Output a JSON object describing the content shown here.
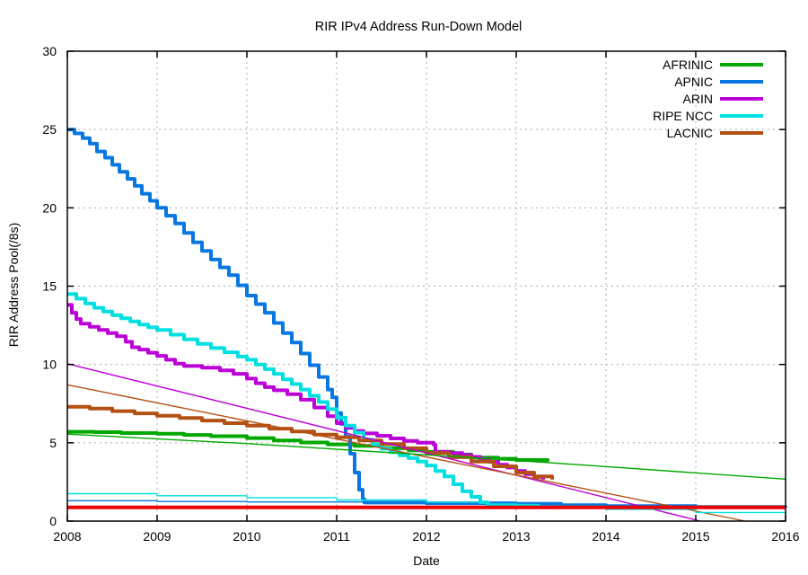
{
  "chart_data": {
    "type": "line",
    "title": "RIR IPv4 Address Run-Down Model",
    "xlabel": "Date",
    "ylabel": "RIR Address Pool(/8s)",
    "xlim": [
      2008,
      2016
    ],
    "ylim": [
      0,
      30
    ],
    "x_ticks": [
      2008,
      2009,
      2010,
      2011,
      2012,
      2013,
      2014,
      2015,
      2016
    ],
    "x_tick_labels": [
      "2008",
      "2009",
      "2010",
      "2011",
      "2012",
      "2013",
      "2014",
      "2015",
      "2016"
    ],
    "y_ticks": [
      0,
      5,
      10,
      15,
      20,
      25,
      30
    ],
    "y_tick_labels": [
      "0",
      "5",
      "10",
      "15",
      "20",
      "25",
      "30"
    ],
    "grid": true,
    "grid_color": "#ababab",
    "legend_position": "top-right-inside",
    "legend": [
      {
        "label": "AFRINIC",
        "color": "#00a800"
      },
      {
        "label": "APNIC",
        "color": "#0878e0"
      },
      {
        "label": "ARIN",
        "color": "#bc00d8"
      },
      {
        "label": "RIPE NCC",
        "color": "#00e0e0"
      },
      {
        "label": "LACNIC",
        "color": "#b35013"
      }
    ],
    "series": [
      {
        "name": "AFRINIC",
        "color": "#00a800",
        "width": 4,
        "interp": "step",
        "in_legend": true,
        "points": [
          [
            2008,
            5.7
          ],
          [
            2008.3,
            5.68
          ],
          [
            2008.6,
            5.62
          ],
          [
            2009,
            5.58
          ],
          [
            2009.3,
            5.5
          ],
          [
            2009.6,
            5.42
          ],
          [
            2010,
            5.3
          ],
          [
            2010.3,
            5.15
          ],
          [
            2010.6,
            5.02
          ],
          [
            2010.9,
            4.9
          ],
          [
            2011.2,
            4.8
          ],
          [
            2011.5,
            4.65
          ],
          [
            2011.8,
            4.52
          ],
          [
            2012,
            4.42
          ],
          [
            2012.3,
            4.25
          ],
          [
            2012.5,
            4.05
          ],
          [
            2012.8,
            3.98
          ],
          [
            2013,
            3.9
          ],
          [
            2013.35,
            3.8
          ]
        ]
      },
      {
        "name": "APNIC",
        "color": "#0878e0",
        "width": 4,
        "interp": "step",
        "in_legend": true,
        "points": [
          [
            2008,
            25
          ],
          [
            2008.08,
            24.75
          ],
          [
            2008.17,
            24.45
          ],
          [
            2008.25,
            24.1
          ],
          [
            2008.33,
            23.6
          ],
          [
            2008.42,
            23.2
          ],
          [
            2008.5,
            22.75
          ],
          [
            2008.58,
            22.3
          ],
          [
            2008.67,
            21.85
          ],
          [
            2008.75,
            21.4
          ],
          [
            2008.83,
            20.9
          ],
          [
            2008.92,
            20.45
          ],
          [
            2009,
            20
          ],
          [
            2009.1,
            19.5
          ],
          [
            2009.2,
            19
          ],
          [
            2009.3,
            18.4
          ],
          [
            2009.4,
            17.8
          ],
          [
            2009.5,
            17.25
          ],
          [
            2009.6,
            16.7
          ],
          [
            2009.7,
            16.2
          ],
          [
            2009.8,
            15.7
          ],
          [
            2009.9,
            15.05
          ],
          [
            2010,
            14.4
          ],
          [
            2010.1,
            13.85
          ],
          [
            2010.2,
            13.3
          ],
          [
            2010.3,
            12.65
          ],
          [
            2010.4,
            12
          ],
          [
            2010.5,
            11.4
          ],
          [
            2010.6,
            10.7
          ],
          [
            2010.7,
            9.95
          ],
          [
            2010.8,
            9.2
          ],
          [
            2010.9,
            8.4
          ],
          [
            2010.95,
            7.9
          ],
          [
            2011,
            6.9
          ],
          [
            2011.05,
            6.2
          ],
          [
            2011.1,
            5.4
          ],
          [
            2011.15,
            4.3
          ],
          [
            2011.2,
            3.1
          ],
          [
            2011.25,
            2
          ],
          [
            2011.29,
            1.4
          ],
          [
            2011.31,
            1.18
          ],
          [
            2012,
            1.14
          ],
          [
            2013,
            1.1
          ],
          [
            2013.5,
            1.02
          ],
          [
            2014,
            0.96
          ],
          [
            2015,
            0.9
          ],
          [
            2016,
            0.86
          ]
        ]
      },
      {
        "name": "ARIN",
        "color": "#bc00d8",
        "width": 4,
        "interp": "step",
        "in_legend": true,
        "points": [
          [
            2008,
            13.8
          ],
          [
            2008.05,
            13.3
          ],
          [
            2008.1,
            12.9
          ],
          [
            2008.15,
            12.6
          ],
          [
            2008.25,
            12.4
          ],
          [
            2008.35,
            12.2
          ],
          [
            2008.45,
            12
          ],
          [
            2008.55,
            11.8
          ],
          [
            2008.65,
            11.45
          ],
          [
            2008.72,
            11.1
          ],
          [
            2008.8,
            10.95
          ],
          [
            2008.9,
            10.75
          ],
          [
            2009,
            10.55
          ],
          [
            2009.1,
            10.3
          ],
          [
            2009.2,
            10.05
          ],
          [
            2009.3,
            9.9
          ],
          [
            2009.5,
            9.8
          ],
          [
            2009.7,
            9.62
          ],
          [
            2009.85,
            9.4
          ],
          [
            2010,
            9.1
          ],
          [
            2010.1,
            8.8
          ],
          [
            2010.2,
            8.55
          ],
          [
            2010.3,
            8.35
          ],
          [
            2010.45,
            8.1
          ],
          [
            2010.6,
            7.75
          ],
          [
            2010.75,
            7.25
          ],
          [
            2010.9,
            6.7
          ],
          [
            2011,
            6.25
          ],
          [
            2011.1,
            5.95
          ],
          [
            2011.2,
            5.75
          ],
          [
            2011.3,
            5.6
          ],
          [
            2011.45,
            5.45
          ],
          [
            2011.6,
            5.28
          ],
          [
            2011.75,
            5.12
          ],
          [
            2011.9,
            5
          ],
          [
            2012.08,
            4.88
          ],
          [
            2012.1,
            4.42
          ],
          [
            2012.25,
            4.35
          ],
          [
            2012.4,
            4.22
          ],
          [
            2012.5,
            4.1
          ],
          [
            2012.6,
            3.95
          ],
          [
            2012.7,
            3.78
          ],
          [
            2012.8,
            3.6
          ],
          [
            2012.9,
            3.42
          ],
          [
            2013,
            3.2
          ],
          [
            2013.1,
            3
          ],
          [
            2013.2,
            2.82
          ],
          [
            2013.3,
            2.65
          ]
        ]
      },
      {
        "name": "RIPE NCC",
        "color": "#00e0e0",
        "width": 4,
        "interp": "step",
        "in_legend": true,
        "points": [
          [
            2008,
            14.5
          ],
          [
            2008.1,
            14.2
          ],
          [
            2008.2,
            13.9
          ],
          [
            2008.3,
            13.62
          ],
          [
            2008.4,
            13.38
          ],
          [
            2008.5,
            13.15
          ],
          [
            2008.6,
            12.95
          ],
          [
            2008.7,
            12.75
          ],
          [
            2008.8,
            12.55
          ],
          [
            2008.9,
            12.38
          ],
          [
            2009,
            12.2
          ],
          [
            2009.15,
            11.9
          ],
          [
            2009.3,
            11.6
          ],
          [
            2009.45,
            11.32
          ],
          [
            2009.6,
            11.05
          ],
          [
            2009.75,
            10.78
          ],
          [
            2009.9,
            10.5
          ],
          [
            2010,
            10.3
          ],
          [
            2010.1,
            10
          ],
          [
            2010.2,
            9.7
          ],
          [
            2010.3,
            9.4
          ],
          [
            2010.4,
            9.05
          ],
          [
            2010.5,
            8.75
          ],
          [
            2010.6,
            8.4
          ],
          [
            2010.7,
            8
          ],
          [
            2010.8,
            7.6
          ],
          [
            2010.9,
            7.15
          ],
          [
            2011,
            6.6
          ],
          [
            2011.1,
            6.1
          ],
          [
            2011.2,
            5.65
          ],
          [
            2011.3,
            5.2
          ],
          [
            2011.4,
            4.9
          ],
          [
            2011.5,
            4.62
          ],
          [
            2011.6,
            4.4
          ],
          [
            2011.7,
            4.2
          ],
          [
            2011.8,
            4.02
          ],
          [
            2011.9,
            3.8
          ],
          [
            2012,
            3.55
          ],
          [
            2012.1,
            3.2
          ],
          [
            2012.2,
            2.85
          ],
          [
            2012.3,
            2.35
          ],
          [
            2012.4,
            1.9
          ],
          [
            2012.5,
            1.55
          ],
          [
            2012.6,
            1.2
          ],
          [
            2012.68,
            1.02
          ],
          [
            2013,
            0.98
          ],
          [
            2013.25,
            0.95
          ]
        ]
      },
      {
        "name": "LACNIC",
        "color": "#b35013",
        "width": 4,
        "interp": "step",
        "in_legend": true,
        "points": [
          [
            2008,
            7.3
          ],
          [
            2008.25,
            7.18
          ],
          [
            2008.5,
            7.02
          ],
          [
            2008.75,
            6.88
          ],
          [
            2009,
            6.72
          ],
          [
            2009.25,
            6.58
          ],
          [
            2009.5,
            6.42
          ],
          [
            2009.75,
            6.25
          ],
          [
            2010,
            6.1
          ],
          [
            2010.25,
            5.9
          ],
          [
            2010.5,
            5.72
          ],
          [
            2010.75,
            5.52
          ],
          [
            2011,
            5.35
          ],
          [
            2011.25,
            5.15
          ],
          [
            2011.5,
            4.92
          ],
          [
            2011.75,
            4.65
          ],
          [
            2012,
            4.35
          ],
          [
            2012.25,
            4.08
          ],
          [
            2012.5,
            3.8
          ],
          [
            2012.75,
            3.5
          ],
          [
            2013,
            3.1
          ],
          [
            2013.2,
            2.85
          ],
          [
            2013.4,
            2.65
          ]
        ]
      },
      {
        "name": "ARIN projection (thin)",
        "color": "#bc00d8",
        "width": 1.4,
        "interp": "linear",
        "in_legend": false,
        "points": [
          [
            2008,
            10.05
          ],
          [
            2015.05,
            0
          ]
        ]
      },
      {
        "name": "LACNIC projection (thin)",
        "color": "#b35013",
        "width": 1.4,
        "interp": "linear",
        "in_legend": false,
        "points": [
          [
            2008,
            8.7
          ],
          [
            2015.55,
            0
          ]
        ]
      },
      {
        "name": "AFRINIC projection (thin)",
        "color": "#00a800",
        "width": 1.4,
        "interp": "linear",
        "in_legend": false,
        "points": [
          [
            2008,
            5.55
          ],
          [
            2010,
            4.95
          ],
          [
            2013.3,
            3.76
          ],
          [
            2016,
            2.68
          ]
        ]
      },
      {
        "name": "RIPE NCC lower line (thin)",
        "color": "#00e0e0",
        "width": 1.4,
        "interp": "step",
        "in_legend": false,
        "points": [
          [
            2008,
            1.75
          ],
          [
            2009,
            1.62
          ],
          [
            2010,
            1.5
          ],
          [
            2011,
            1.35
          ],
          [
            2012,
            1.2
          ],
          [
            2012.7,
            1.1
          ]
        ]
      },
      {
        "name": "APNIC lower line (thin)",
        "color": "#0878e0",
        "width": 1.4,
        "interp": "step",
        "in_legend": false,
        "points": [
          [
            2008,
            1.3
          ],
          [
            2009,
            1.25
          ],
          [
            2010,
            1.22
          ],
          [
            2011.3,
            1.18
          ]
        ]
      },
      {
        "name": "RIPE NCC post-exhaustion tail (thin)",
        "color": "#00e0e0",
        "width": 1.4,
        "interp": "step",
        "in_legend": false,
        "points": [
          [
            2013.25,
            0.95
          ],
          [
            2014,
            0.75
          ],
          [
            2015,
            0.55
          ],
          [
            2016,
            0.42
          ]
        ]
      },
      {
        "name": "unlabeled red line",
        "color": "#ee0000",
        "width": 4,
        "interp": "linear",
        "in_legend": false,
        "points": [
          [
            2008,
            0.87
          ],
          [
            2016,
            0.87
          ]
        ]
      }
    ]
  }
}
